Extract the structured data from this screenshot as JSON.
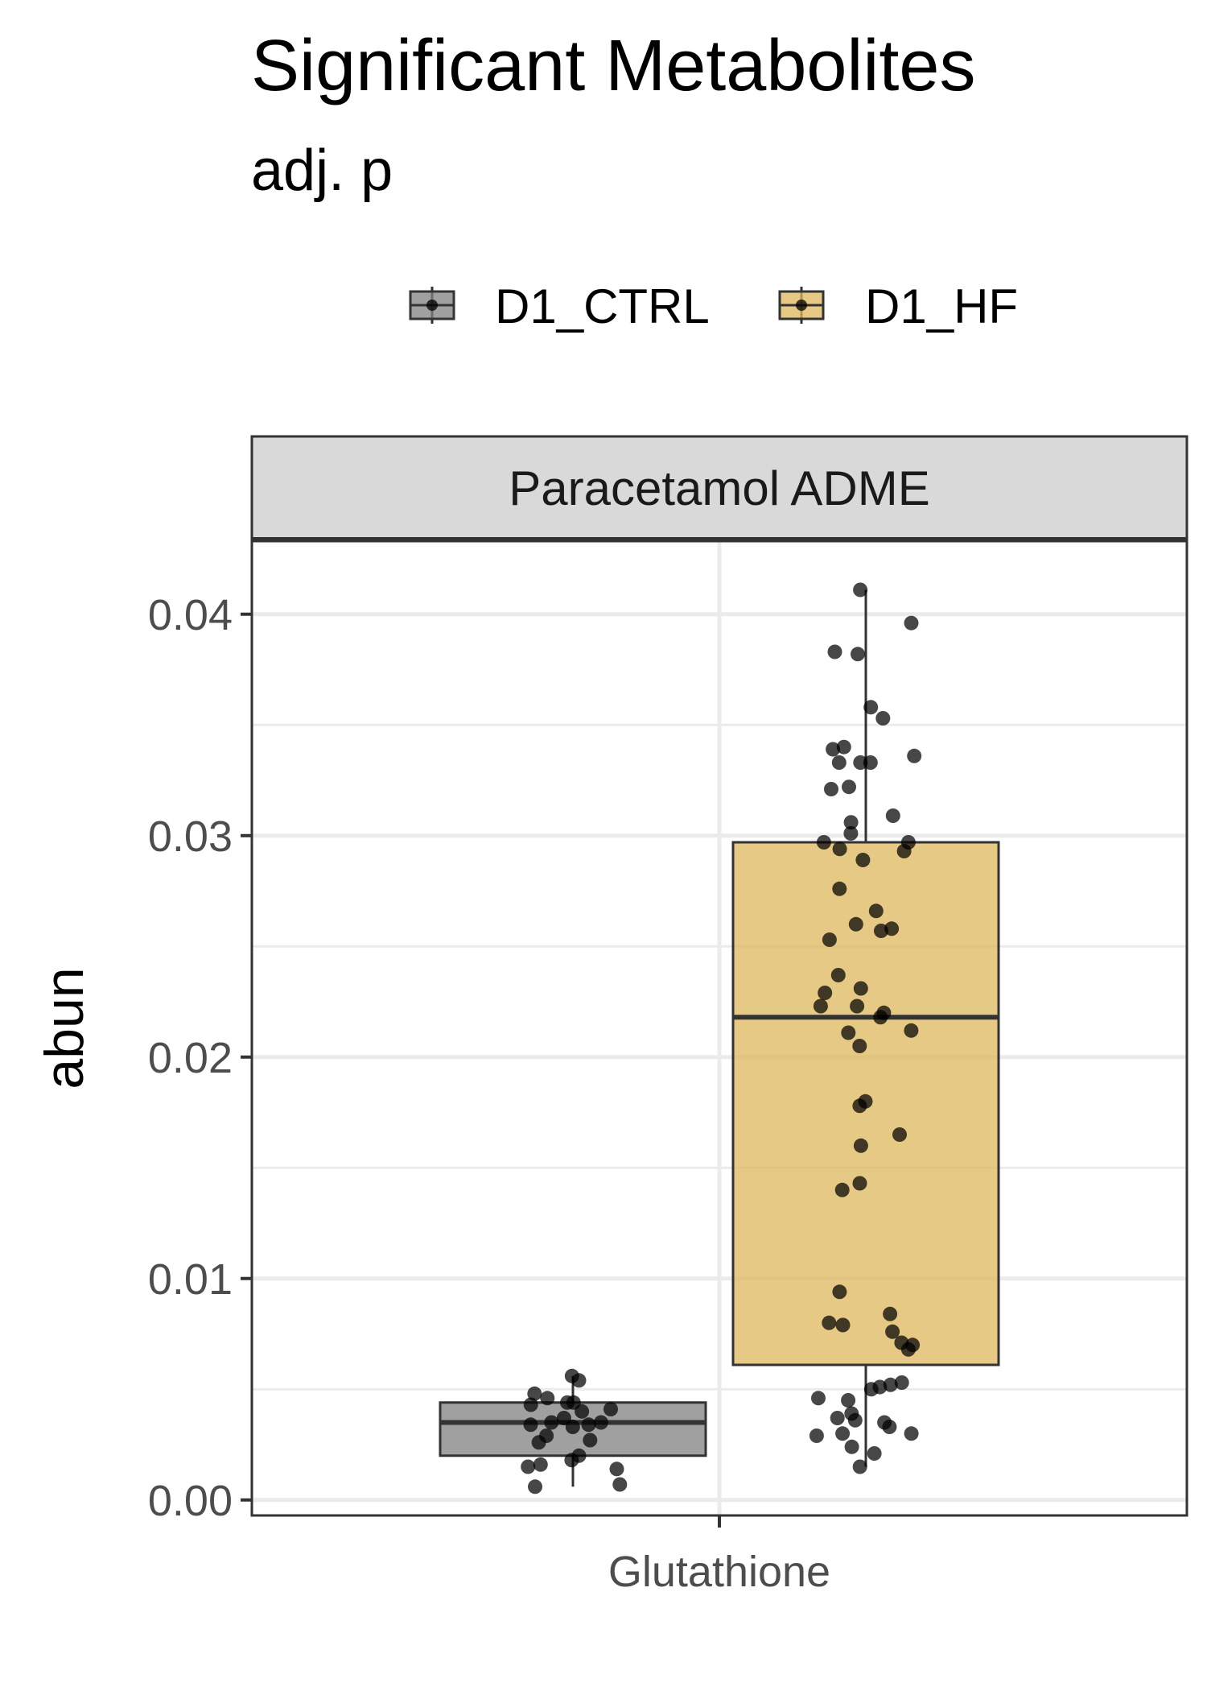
{
  "chart_data": {
    "type": "box",
    "title": "Significant Metabolites",
    "subtitle": "adj. p",
    "facet_label": "Paracetamol ADME",
    "xlabel": "",
    "ylabel": "abun",
    "categories": [
      "Glutathione"
    ],
    "ylim": [
      -0.0007,
      0.0433
    ],
    "yticks": [
      0.0,
      0.01,
      0.02,
      0.03,
      0.04
    ],
    "ytick_labels": [
      "0.00",
      "0.01",
      "0.02",
      "0.03",
      "0.04"
    ],
    "grid": true,
    "legend_position": "top",
    "series": [
      {
        "name": "D1_CTRL",
        "color": "#808080",
        "box": {
          "min": 0.0006,
          "q1": 0.002,
          "median": 0.0035,
          "q3": 0.0044,
          "max": 0.0056
        },
        "points": [
          0.0056,
          0.0054,
          0.0048,
          0.0046,
          0.0044,
          0.0044,
          0.0043,
          0.0041,
          0.004,
          0.0037,
          0.0035,
          0.0035,
          0.0034,
          0.0034,
          0.0033,
          0.0029,
          0.0027,
          0.0026,
          0.002,
          0.0018,
          0.0016,
          0.0015,
          0.0014,
          0.0007,
          0.0006
        ]
      },
      {
        "name": "D1_HF",
        "color": "#DDB75B",
        "box": {
          "min": 0.0015,
          "q1": 0.0061,
          "median": 0.0218,
          "q3": 0.0297,
          "max": 0.0411
        },
        "points": [
          0.0411,
          0.0396,
          0.0383,
          0.0382,
          0.0358,
          0.0353,
          0.034,
          0.0339,
          0.0336,
          0.0333,
          0.0333,
          0.0333,
          0.0322,
          0.0321,
          0.0309,
          0.0306,
          0.0301,
          0.0297,
          0.0297,
          0.0294,
          0.0293,
          0.0289,
          0.0276,
          0.0266,
          0.026,
          0.0258,
          0.0257,
          0.0253,
          0.0237,
          0.0231,
          0.0229,
          0.0223,
          0.0223,
          0.022,
          0.0218,
          0.0212,
          0.0211,
          0.0205,
          0.018,
          0.0178,
          0.0165,
          0.016,
          0.0143,
          0.014,
          0.0094,
          0.0084,
          0.008,
          0.0079,
          0.0076,
          0.0071,
          0.007,
          0.0068,
          0.0053,
          0.0052,
          0.0051,
          0.005,
          0.0046,
          0.0045,
          0.0039,
          0.0037,
          0.0036,
          0.0035,
          0.0033,
          0.003,
          0.003,
          0.0029,
          0.0024,
          0.0021,
          0.0015
        ]
      }
    ]
  }
}
